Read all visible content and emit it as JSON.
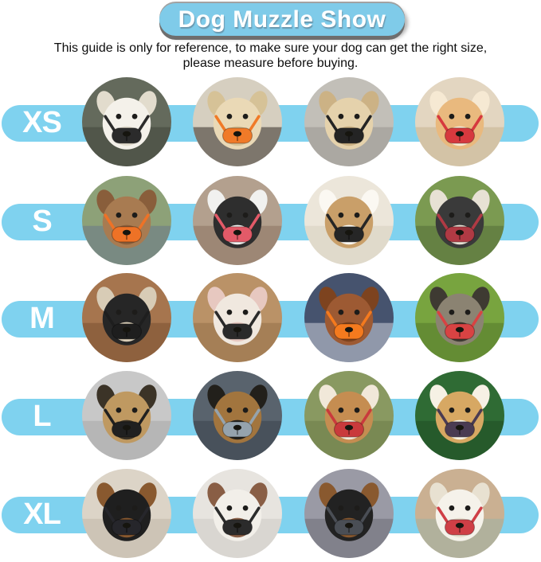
{
  "header": {
    "title": "Dog Muzzle Show",
    "banner_color": "#7fcbe9",
    "subtitle_line1": "This guide is only for reference, to make sure your dog can get the right size,",
    "subtitle_line2": "please measure before buying."
  },
  "size_chart": {
    "band_color": "#7fd2ef",
    "label_color": "#ffffff",
    "rows": [
      {
        "size": "XS",
        "photos": [
          {
            "desc": "white fluffy shih tzu wearing black muzzle, dark seat background",
            "bg": "#646a5c",
            "bg2": "#42463c",
            "fur": "#f4f1ea",
            "fur2": "#e2dccd",
            "muzzle": "#2b2b2b"
          },
          {
            "desc": "cream puppy in dark crate wearing orange muzzle",
            "bg": "#d6cfc0",
            "bg2": "#352e26",
            "fur": "#ead9b6",
            "fur2": "#d6c297",
            "muzzle": "#f07a28"
          },
          {
            "desc": "tan yorkie terrier on gray pavement wearing black muzzle",
            "bg": "#c2bfb8",
            "bg2": "#999690",
            "fur": "#e5d2ac",
            "fur2": "#ccb285",
            "muzzle": "#242424"
          },
          {
            "desc": "tan and white corgi puppy wearing red and black muzzle, beige floor",
            "bg": "#e3d6c1",
            "bg2": "#c7b48f",
            "fur": "#e9b97e",
            "fur2": "#f6e9d3",
            "muzzle": "#d6393e"
          }
        ]
      },
      {
        "size": "S",
        "photos": [
          {
            "desc": "brown dachshund in car wearing orange muzzle, green blurred background",
            "bg": "#8da178",
            "bg2": "#69788a",
            "fur": "#a87b51",
            "fur2": "#895e3b",
            "muzzle": "#ee7226"
          },
          {
            "desc": "black and white border collie wearing red muzzle, brick building background",
            "bg": "#b3a08e",
            "bg2": "#8a7260",
            "fur": "#2e2e2e",
            "fur2": "#f1f1ef",
            "muzzle": "#e35a68"
          },
          {
            "desc": "tan and white corgi profile wearing black muzzle, light beige background",
            "bg": "#ece6da",
            "bg2": "#d7cfbf",
            "fur": "#c99f69",
            "fur2": "#fbf8f2",
            "muzzle": "#262626"
          },
          {
            "desc": "scruffy black and white terrier wearing dark red muzzle, green foliage",
            "bg": "#7b9a51",
            "bg2": "#536e39",
            "fur": "#3a3a3a",
            "fur2": "#e7e1d4",
            "muzzle": "#b03a44"
          }
        ]
      },
      {
        "size": "M",
        "photos": [
          {
            "desc": "black tricolor dog with tongue out wearing black muzzle, wood background",
            "bg": "#a6754e",
            "bg2": "#7a5031",
            "fur": "#262626",
            "fur2": "#d8ccb6",
            "muzzle": "#1e1e1e"
          },
          {
            "desc": "white pitbull with pink ears wearing black muzzle, tan background",
            "bg": "#ba9267",
            "bg2": "#947049",
            "fur": "#f0e8df",
            "fur2": "#e7c8c0",
            "muzzle": "#2a2a2a"
          },
          {
            "desc": "chestnut red dog wearing orange muzzle, navy striped chair background",
            "bg": "#46536e",
            "bg2": "#cdd2dc",
            "fur": "#9d5a33",
            "fur2": "#7d431f",
            "muzzle": "#f47a1e"
          },
          {
            "desc": "fluffy gray and tan dog wearing red muzzle, green grass background",
            "bg": "#78a43f",
            "bg2": "#54792c",
            "fur": "#8b8372",
            "fur2": "#3e3a32",
            "muzzle": "#d84343"
          }
        ]
      },
      {
        "size": "L",
        "photos": [
          {
            "desc": "belgian malinois wearing black muzzle, gray tile floor background",
            "bg": "#c8c8c8",
            "bg2": "#a7a7a7",
            "fur": "#bf9961",
            "fur2": "#3b3327",
            "muzzle": "#202020"
          },
          {
            "desc": "german shepherd wearing gray muzzle, dark car interior background",
            "bg": "#59636d",
            "bg2": "#3b434c",
            "fur": "#a2753e",
            "fur2": "#22201b",
            "muzzle": "#95a3ad"
          },
          {
            "desc": "tan pit mix with yellow bandana wearing red muzzle, grass background",
            "bg": "#899961",
            "bg2": "#6c7b48",
            "fur": "#c58d51",
            "fur2": "#f1e8d9",
            "muzzle": "#c93a3c"
          },
          {
            "desc": "corgi with tongue out wearing dark floral muzzle, green background",
            "bg": "#2f6b34",
            "bg2": "#1f4c24",
            "fur": "#d7a863",
            "fur2": "#f6f1e5",
            "muzzle": "#4a3b52"
          }
        ]
      },
      {
        "size": "XL",
        "photos": [
          {
            "desc": "black rottweiler wearing black muzzle, light cream wall background",
            "bg": "#dcd4c7",
            "bg2": "#c1b7a7",
            "fur": "#1f1f1f",
            "fur2": "#89592f",
            "muzzle": "#26262b"
          },
          {
            "desc": "brown and white pitbull wearing black muzzle, white door background",
            "bg": "#e7e4df",
            "bg2": "#cecbc5",
            "fur": "#f2efe9",
            "fur2": "#895e45",
            "muzzle": "#2b2b2b"
          },
          {
            "desc": "black and tan doberman wearing gray muzzle, cluttered shop background",
            "bg": "#9a9aa5",
            "bg2": "#6d6d77",
            "fur": "#222222",
            "fur2": "#89592f",
            "muzzle": "#4a4e55"
          },
          {
            "desc": "white great pyrenees wearing red muzzle, tan room background",
            "bg": "#cab092",
            "bg2": "#9cb2a4",
            "fur": "#f5f2ea",
            "fur2": "#e8e1d1",
            "muzzle": "#cf3f46"
          }
        ]
      }
    ]
  }
}
